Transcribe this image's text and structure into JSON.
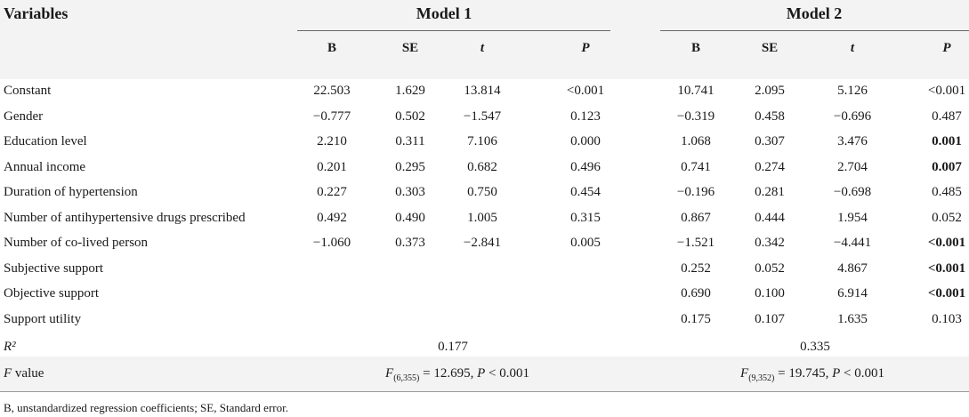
{
  "header": {
    "variables": "Variables",
    "model1": "Model 1",
    "model2": "Model 2",
    "cols": [
      "B",
      "SE",
      "t",
      "P"
    ]
  },
  "rows": [
    {
      "label": "Constant",
      "m1": [
        "22.503",
        "1.629",
        "13.814",
        "<0.001"
      ],
      "m2": [
        "10.741",
        "2.095",
        "5.126",
        "<0.001"
      ],
      "bold2": false
    },
    {
      "label": "Gender",
      "m1": [
        "−0.777",
        "0.502",
        "−1.547",
        "0.123"
      ],
      "m2": [
        "−0.319",
        "0.458",
        "−0.696",
        "0.487"
      ],
      "bold2": false
    },
    {
      "label": "Education level",
      "m1": [
        "2.210",
        "0.311",
        "7.106",
        "0.000"
      ],
      "m2": [
        "1.068",
        "0.307",
        "3.476",
        "0.001"
      ],
      "bold2": true
    },
    {
      "label": "Annual income",
      "m1": [
        "0.201",
        "0.295",
        "0.682",
        "0.496"
      ],
      "m2": [
        "0.741",
        "0.274",
        "2.704",
        "0.007"
      ],
      "bold2": true
    },
    {
      "label": "Duration of hypertension",
      "m1": [
        "0.227",
        "0.303",
        "0.750",
        "0.454"
      ],
      "m2": [
        "−0.196",
        "0.281",
        "−0.698",
        "0.485"
      ],
      "bold2": false
    },
    {
      "label": "Number of antihypertensive drugs prescribed",
      "m1": [
        "0.492",
        "0.490",
        "1.005",
        "0.315"
      ],
      "m2": [
        "0.867",
        "0.444",
        "1.954",
        "0.052"
      ],
      "bold2": false
    },
    {
      "label": "Number of co-lived person",
      "m1": [
        "−1.060",
        "0.373",
        "−2.841",
        "0.005"
      ],
      "m2": [
        "−1.521",
        "0.342",
        "−4.441",
        "<0.001"
      ],
      "bold2": true
    },
    {
      "label": "Subjective support",
      "m1": [
        "",
        "",
        "",
        ""
      ],
      "m2": [
        "0.252",
        "0.052",
        "4.867",
        "<0.001"
      ],
      "bold2": true
    },
    {
      "label": "Objective support",
      "m1": [
        "",
        "",
        "",
        ""
      ],
      "m2": [
        "0.690",
        "0.100",
        "6.914",
        "<0.001"
      ],
      "bold2": true
    },
    {
      "label": "Support utility",
      "m1": [
        "",
        "",
        "",
        ""
      ],
      "m2": [
        "0.175",
        "0.107",
        "1.635",
        "0.103"
      ],
      "bold2": false
    }
  ],
  "r2": {
    "label": "R²",
    "m1": "0.177",
    "m2": "0.335"
  },
  "fvalue": {
    "label": "F value",
    "m1_sub": "(6,355)",
    "m1_rest": " = 12.695, ",
    "m1_p": "P",
    "m1_tail": " < 0.001",
    "m2_sub": "(9,352)",
    "m2_rest": " = 19.745, ",
    "m2_p": "P",
    "m2_tail": " < 0.001"
  },
  "footnote": "B, unstandardized regression coefficients; SE, Standard error."
}
